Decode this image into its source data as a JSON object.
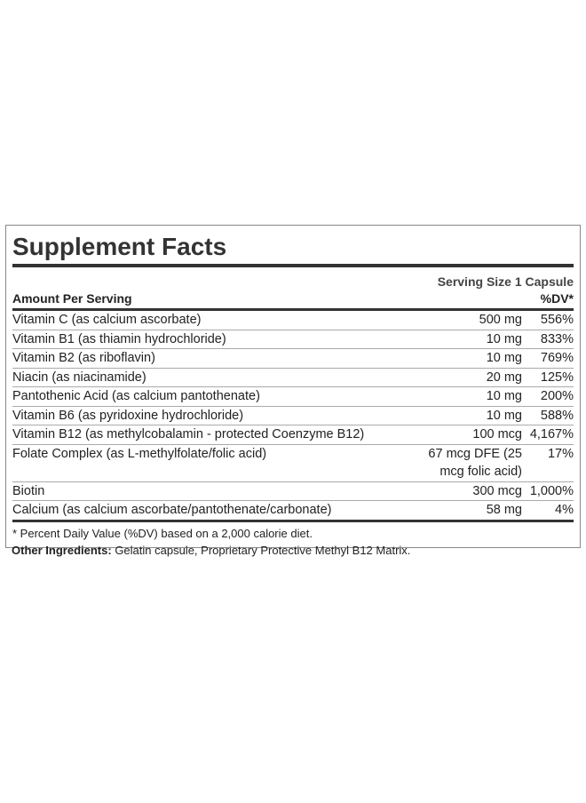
{
  "title": "Supplement Facts",
  "serving_size": "Serving Size 1 Capsule",
  "header": {
    "amount": "Amount Per Serving",
    "dv": "%DV*"
  },
  "rows": [
    {
      "name": "Vitamin C (as calcium ascorbate)",
      "amount": "500 mg",
      "dv": "556%"
    },
    {
      "name": "Vitamin B1 (as thiamin hydrochloride)",
      "amount": "10 mg",
      "dv": "833%"
    },
    {
      "name": "Vitamin B2 (as riboflavin)",
      "amount": "10 mg",
      "dv": "769%"
    },
    {
      "name": "Niacin (as niacinamide)",
      "amount": "20 mg",
      "dv": "125%"
    },
    {
      "name": "Pantothenic Acid (as calcium pantothenate)",
      "amount": "10 mg",
      "dv": "200%"
    },
    {
      "name": "Vitamin B6 (as pyridoxine hydrochloride)",
      "amount": "10 mg",
      "dv": "588%"
    },
    {
      "name": "Vitamin B12 (as methylcobalamin - protected Coenzyme B12)",
      "amount": "100 mcg",
      "dv": "4,167%"
    },
    {
      "name": "Folate Complex (as L-methylfolate/folic acid)",
      "amount": "67 mcg DFE (25 mcg folic acid)",
      "dv": "17%"
    },
    {
      "name": "Biotin",
      "amount": "300 mcg",
      "dv": "1,000%"
    },
    {
      "name": "Calcium (as calcium ascorbate/pantothenate/carbonate)",
      "amount": "58 mg",
      "dv": "4%"
    }
  ],
  "footnote": "* Percent Daily Value (%DV) based on a 2,000 calorie diet.",
  "other_ingredients": {
    "label": "Other Ingredients:",
    "text": "Gelatin capsule, Proprietary Protective Methyl B12 Matrix."
  }
}
